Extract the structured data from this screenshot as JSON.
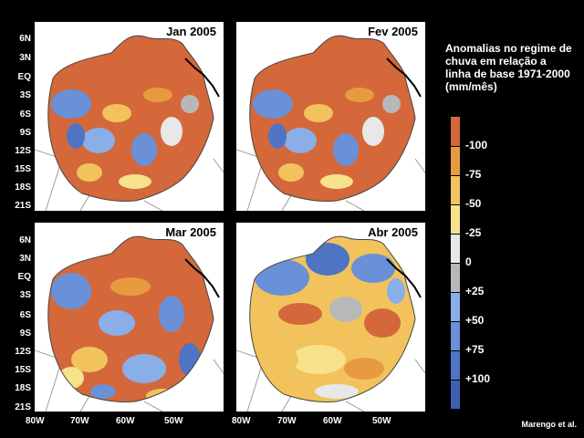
{
  "panels": [
    {
      "title": "Jan 2005",
      "pattern": "dry-strong"
    },
    {
      "title": "Fev 2005",
      "pattern": "dry-strong"
    },
    {
      "title": "Mar 2005",
      "pattern": "mixed"
    },
    {
      "title": "Abr 2005",
      "pattern": "wet-north"
    }
  ],
  "lat_labels": [
    "6N",
    "3N",
    "EQ",
    "3S",
    "6S",
    "9S",
    "12S",
    "15S",
    "18S",
    "21S"
  ],
  "lon_labels": [
    "80W",
    "70W",
    "60W",
    "50W"
  ],
  "legend": {
    "title": "Anomalias no regime de chuva em relação a linha de base 1971-2000 (mm/mês)",
    "entries": [
      {
        "label": "-100",
        "color": "#d4683a"
      },
      {
        "label": "-75",
        "color": "#e89a40"
      },
      {
        "label": "-50",
        "color": "#f2c35c"
      },
      {
        "label": "-25",
        "color": "#f7e28c"
      },
      {
        "label": "0",
        "color": "#e8e8e8"
      },
      {
        "label": "+25",
        "color": "#b8b8b8"
      },
      {
        "label": "+50",
        "color": "#8aaee8"
      },
      {
        "label": "+75",
        "color": "#6a90d8"
      },
      {
        "label": "+100",
        "color": "#4f74c4"
      }
    ],
    "extra_color": "#3e60b0"
  },
  "credit": "Marengo et al."
}
